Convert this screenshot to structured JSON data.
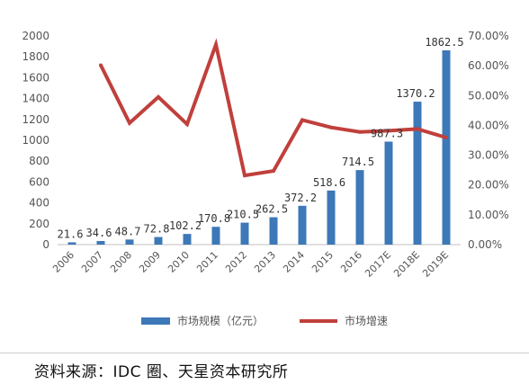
{
  "chart_data": {
    "type": "bar",
    "categories": [
      "2006",
      "2007",
      "2008",
      "2009",
      "2010",
      "2011",
      "2012",
      "2013",
      "2014",
      "2015",
      "2016",
      "2017E",
      "2018E",
      "2019E"
    ],
    "series": [
      {
        "name": "市场规模（亿元）",
        "type": "bar",
        "axis": "left",
        "color": "#3d78b8",
        "values": [
          21.6,
          34.6,
          48.7,
          72.8,
          102.2,
          170.8,
          210.5,
          262.5,
          372.2,
          518.6,
          714.5,
          987.3,
          1370.2,
          1862.5
        ],
        "labels": [
          "21.6",
          "34.6",
          "48.7",
          "72.8",
          "102.2",
          "170.8",
          "210.5",
          "262.5",
          "372.2",
          "518.6",
          "714.5",
          "987.3",
          "1370.2",
          "1862.5"
        ]
      },
      {
        "name": "市场增速",
        "type": "line",
        "axis": "right",
        "color": "#c0403c",
        "values": [
          null,
          0.602,
          0.408,
          0.495,
          0.404,
          0.671,
          0.232,
          0.247,
          0.418,
          0.393,
          0.378,
          0.382,
          0.388,
          0.359
        ]
      }
    ],
    "ylim": [
      0,
      2000
    ],
    "y_ticks": [
      "0",
      "200",
      "400",
      "600",
      "800",
      "1000",
      "1200",
      "1400",
      "1600",
      "1800",
      "2000"
    ],
    "y2lim": [
      0,
      0.7
    ],
    "y2_ticks": [
      "0.00%",
      "10.00%",
      "20.00%",
      "30.00%",
      "40.00%",
      "50.00%",
      "60.00%",
      "70.00%"
    ],
    "grid": false,
    "legend_position": "bottom"
  },
  "source": "资料来源：IDC 圈、天星资本研究所"
}
